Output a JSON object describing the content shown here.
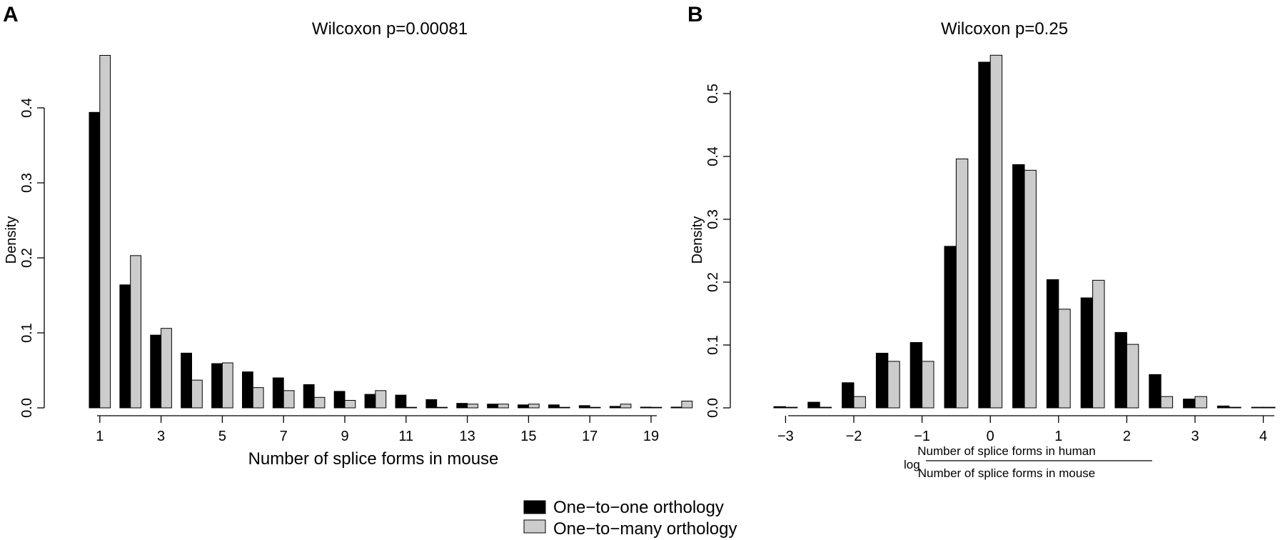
{
  "chart_data": [
    {
      "panel": "A",
      "type": "bar",
      "title": "Wilcoxon p=0.00081",
      "xlabel": "Number of splice forms in mouse",
      "ylabel": "Density",
      "ylim": [
        0,
        0.47
      ],
      "yticks": [
        "0.0",
        "0.1",
        "0.2",
        "0.3",
        "0.4"
      ],
      "xtick_labels": [
        "1",
        "3",
        "5",
        "7",
        "9",
        "11",
        "13",
        "15",
        "17",
        "19"
      ],
      "categories": [
        "1",
        "2",
        "3",
        "4",
        "5",
        "6",
        "7",
        "8",
        "9",
        "10",
        "11",
        "12",
        "13",
        "14",
        "15",
        "16",
        "17",
        "18",
        "19",
        "20"
      ],
      "series": [
        {
          "name": "One−to−one orthology",
          "color": "#000000",
          "values": [
            0.394,
            0.164,
            0.097,
            0.073,
            0.059,
            0.048,
            0.04,
            0.031,
            0.022,
            0.018,
            0.017,
            0.011,
            0.006,
            0.005,
            0.004,
            0.004,
            0.003,
            0.002,
            0.001,
            0.001
          ]
        },
        {
          "name": "One−to−many orthology",
          "color": "#cccccc",
          "values": [
            0.47,
            0.203,
            0.106,
            0.037,
            0.06,
            0.027,
            0.023,
            0.014,
            0.01,
            0.023,
            0.0,
            0.0,
            0.005,
            0.005,
            0.005,
            0.0,
            0.0,
            0.005,
            0.0,
            0.009
          ]
        }
      ]
    },
    {
      "panel": "B",
      "type": "bar",
      "title": "Wilcoxon p=0.25",
      "xlabel_prefix": "log",
      "xlabel_numerator": "Number of splice forms in human",
      "xlabel_denominator": "Number of splice forms in mouse",
      "ylabel": "Density",
      "ylim": [
        0,
        0.56
      ],
      "yticks": [
        "0.0",
        "0.1",
        "0.2",
        "0.3",
        "0.4",
        "0.5"
      ],
      "xtick_labels": [
        "−3",
        "−2",
        "−1",
        "0",
        "1",
        "2",
        "3",
        "4"
      ],
      "categories": [
        "-3",
        "-2.5",
        "-2",
        "-1.5",
        "-1",
        "-0.5",
        "0",
        "0.5",
        "1",
        "1.5",
        "2",
        "2.5",
        "3",
        "3.5",
        "4"
      ],
      "series": [
        {
          "name": "One−to−one orthology",
          "color": "#000000",
          "values": [
            0.002,
            0.009,
            0.04,
            0.087,
            0.104,
            0.257,
            0.55,
            0.387,
            0.204,
            0.175,
            0.12,
            0.053,
            0.014,
            0.003,
            0.001
          ]
        },
        {
          "name": "One−to−many orthology",
          "color": "#cccccc",
          "values": [
            0.001,
            0.001,
            0.018,
            0.074,
            0.074,
            0.396,
            0.561,
            0.378,
            0.157,
            0.203,
            0.101,
            0.018,
            0.018,
            0.001,
            0.001
          ]
        }
      ]
    }
  ],
  "panels": {
    "a_letter": "A",
    "b_letter": "B"
  },
  "legend": {
    "items": [
      {
        "label": "One−to−one orthology",
        "color": "#000000"
      },
      {
        "label": "One−to−many orthology",
        "color": "#cccccc"
      }
    ]
  }
}
